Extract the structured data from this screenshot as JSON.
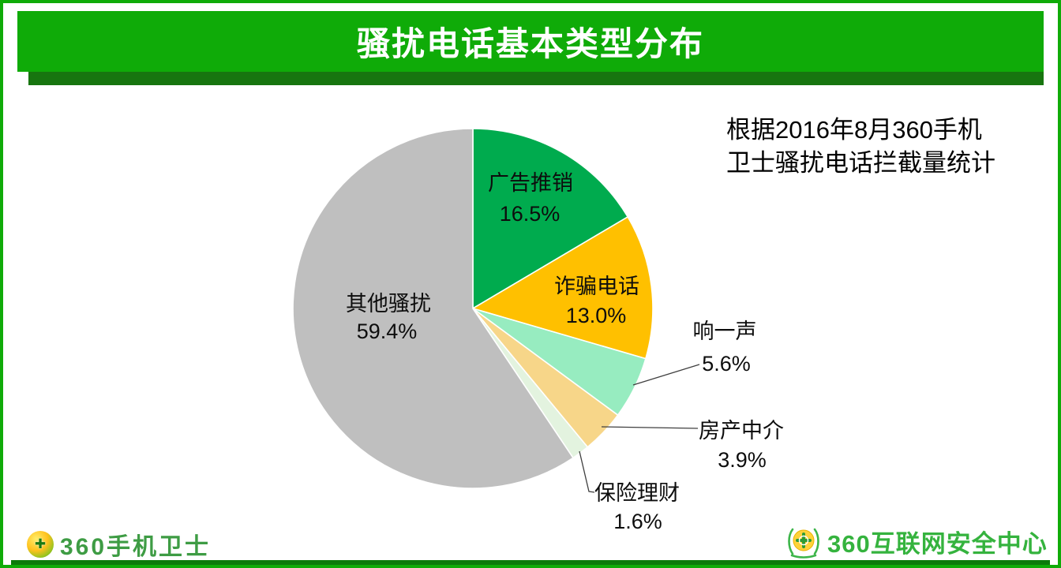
{
  "header": {
    "title": "骚扰电话基本类型分布"
  },
  "note": {
    "line1": "根据2016年8月360手机",
    "line2": "卫士骚扰电话拦截量统计"
  },
  "theme": {
    "banner_green": "#0FAB08",
    "banner_shadow_green": "#17750F",
    "bottom_bar_green": "#0B7B0B",
    "label_text": "#0d0d0d"
  },
  "chart_data": {
    "type": "pie",
    "title": "骚扰电话基本类型分布",
    "source_note": "根据2016年8月360手机卫士骚扰电话拦截量统计",
    "start_angle_deg": 0,
    "direction": "clockwise",
    "legend_position": "none",
    "segments": [
      {
        "label": "广告推销",
        "value": 16.5,
        "pct_label": "16.5%",
        "color": "#00AB4E",
        "label_placement": "inside"
      },
      {
        "label": "诈骗电话",
        "value": 13.0,
        "pct_label": "13.0%",
        "color": "#FFC000",
        "label_placement": "inside"
      },
      {
        "label": "响一声",
        "value": 5.6,
        "pct_label": "5.6%",
        "color": "#97ECC0",
        "label_placement": "outside"
      },
      {
        "label": "房产中介",
        "value": 3.9,
        "pct_label": "3.9%",
        "color": "#F7D689",
        "label_placement": "outside"
      },
      {
        "label": "保险理财",
        "value": 1.6,
        "pct_label": "1.6%",
        "color": "#E3F3DF",
        "label_placement": "outside"
      },
      {
        "label": "其他骚扰",
        "value": 59.4,
        "pct_label": "59.4%",
        "color": "#BFBFBF",
        "label_placement": "inside"
      }
    ]
  },
  "footer": {
    "left_logo_text": "360手机卫士",
    "left_logo_icon": "shield-ball-icon",
    "right_logo_text": "360互联网安全中心",
    "right_logo_icon": "laurel-ball-icon",
    "ball_glyph": "✚"
  }
}
